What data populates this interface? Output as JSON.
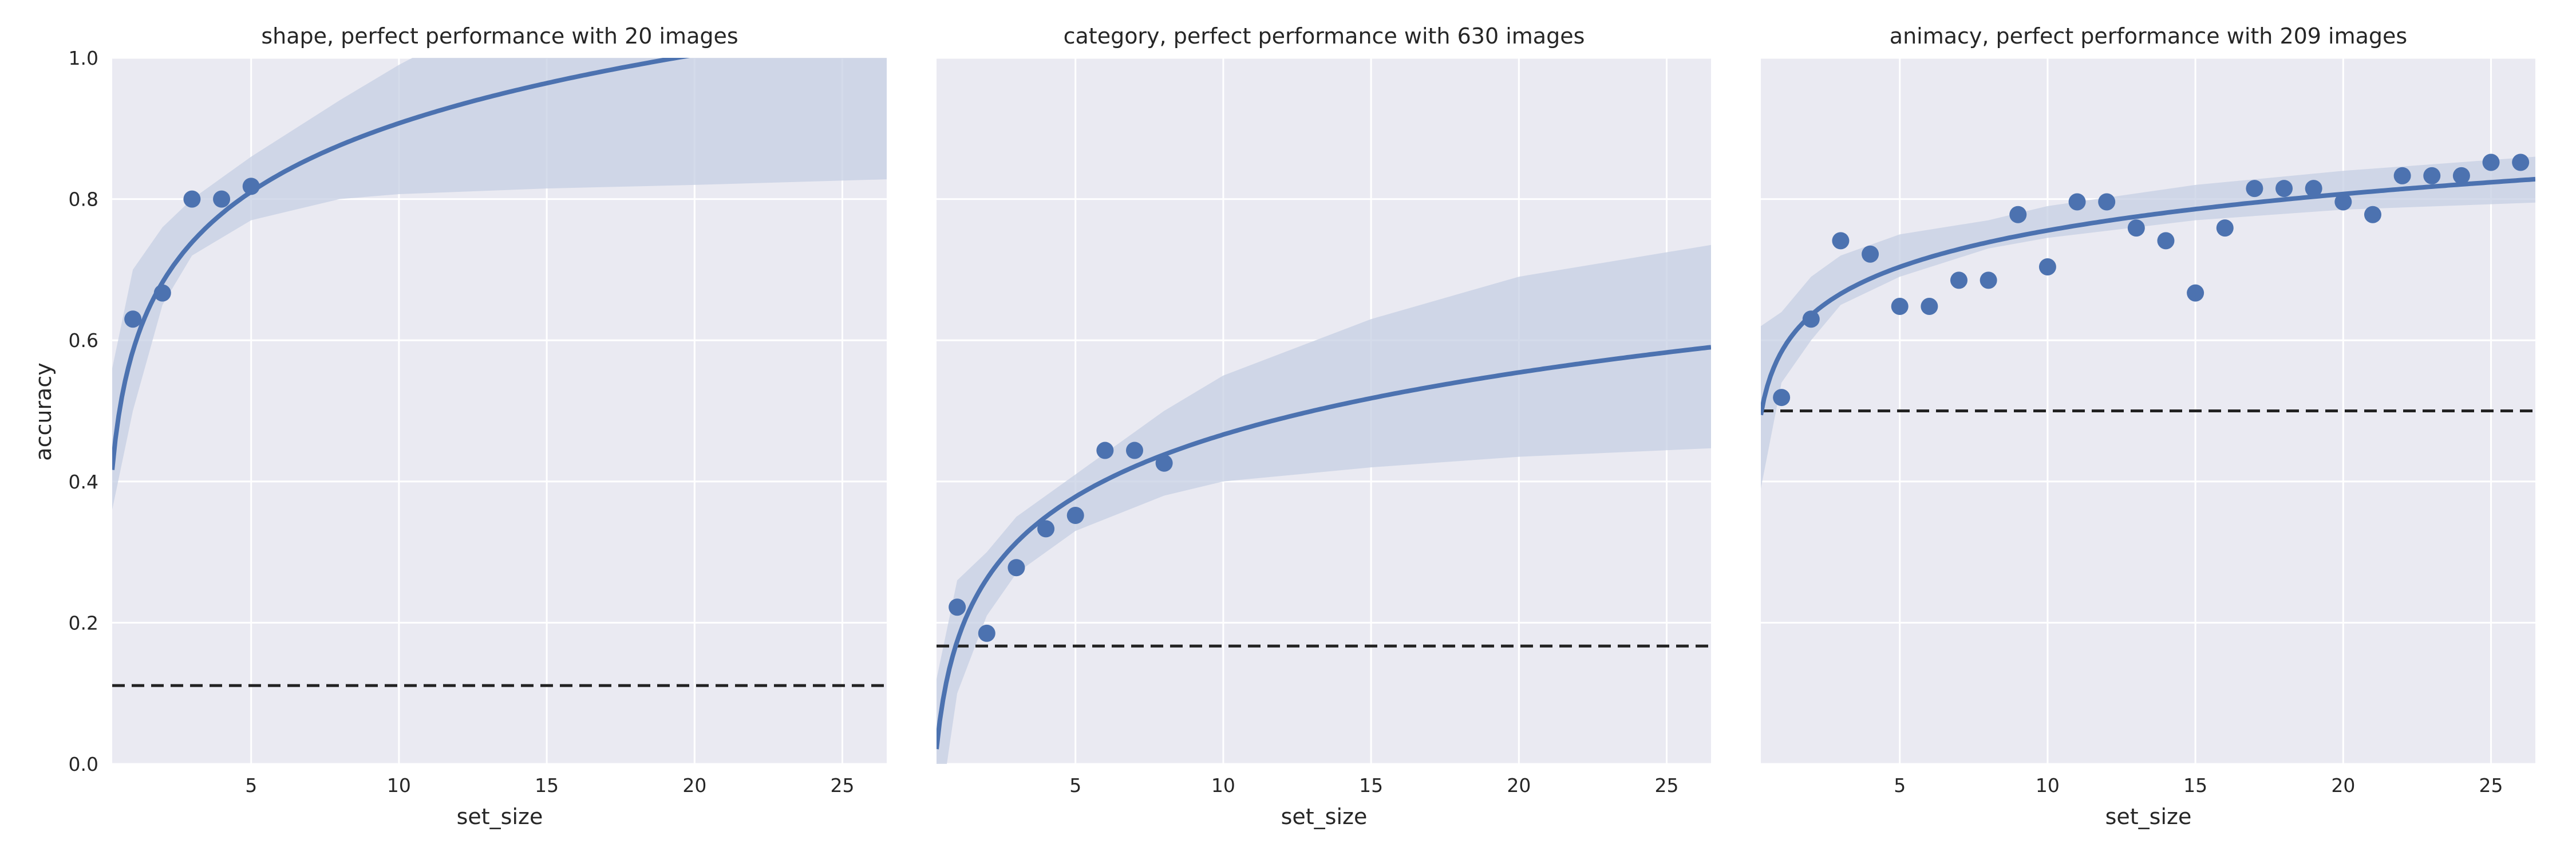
{
  "chart_data": [
    {
      "type": "scatter",
      "title": "shape, perfect performance with 20 images",
      "xlabel": "set_size",
      "ylabel": "accuracy",
      "xlim": [
        0.3,
        26.5
      ],
      "ylim": [
        0.0,
        1.0
      ],
      "xticks": [
        5,
        10,
        15,
        20,
        25
      ],
      "yticks": [
        0.0,
        0.2,
        0.4,
        0.6,
        0.8,
        1.0
      ],
      "chance_level": 0.111,
      "points": {
        "x": [
          1,
          2,
          3,
          4,
          5
        ],
        "y": [
          0.63,
          0.667,
          0.8,
          0.8,
          0.818
        ]
      },
      "fit": {
        "model": "y = a + b*ln(x)",
        "a": 0.585,
        "b": 0.14,
        "ci_upper": {
          "x": [
            0.3,
            1,
            2,
            3,
            5,
            8,
            10,
            15,
            20,
            26.5
          ],
          "y": [
            0.56,
            0.7,
            0.76,
            0.8,
            0.86,
            0.94,
            0.99,
            1.1,
            1.16,
            1.2
          ]
        },
        "ci_lower": {
          "x": [
            0.3,
            1,
            2,
            3,
            5,
            8,
            10,
            15,
            20,
            26.5
          ],
          "y": [
            0.36,
            0.5,
            0.65,
            0.72,
            0.77,
            0.8,
            0.807,
            0.815,
            0.82,
            0.828
          ]
        }
      },
      "colors": {
        "points": "#4c72b0",
        "line": "#4c72b0",
        "band": "#c5cfe3",
        "chance": "#222222",
        "background": "#eaeaf2",
        "grid": "#ffffff"
      }
    },
    {
      "type": "scatter",
      "title": "category, perfect performance with 630 images",
      "xlabel": "set_size",
      "ylabel": "",
      "xlim": [
        0.3,
        26.5
      ],
      "ylim": [
        0.0,
        1.0
      ],
      "xticks": [
        5,
        10,
        15,
        20,
        25
      ],
      "yticks": [
        0.0,
        0.2,
        0.4,
        0.6,
        0.8,
        1.0
      ],
      "chance_level": 0.167,
      "points": {
        "x": [
          1,
          2,
          3,
          4,
          5,
          6,
          7,
          8
        ],
        "y": [
          0.222,
          0.185,
          0.278,
          0.333,
          0.352,
          0.444,
          0.444,
          0.426
        ]
      },
      "fit": {
        "model": "y = a + b*ln(x)",
        "a": 0.174,
        "b": 0.127,
        "ci_upper": {
          "x": [
            0.3,
            1,
            2,
            3,
            5,
            8,
            10,
            15,
            20,
            26.5
          ],
          "y": [
            0.12,
            0.26,
            0.3,
            0.35,
            0.41,
            0.5,
            0.55,
            0.63,
            0.69,
            0.735
          ]
        },
        "ci_lower": {
          "x": [
            0.3,
            1,
            2,
            3,
            5,
            8,
            10,
            15,
            20,
            26.5
          ],
          "y": [
            -0.1,
            0.1,
            0.21,
            0.27,
            0.33,
            0.38,
            0.4,
            0.42,
            0.435,
            0.447
          ]
        }
      },
      "colors": {
        "points": "#4c72b0",
        "line": "#4c72b0",
        "band": "#c5cfe3",
        "chance": "#222222",
        "background": "#eaeaf2",
        "grid": "#ffffff"
      }
    },
    {
      "type": "scatter",
      "title": "animacy, perfect performance with 209 images",
      "xlabel": "set_size",
      "ylabel": "",
      "xlim": [
        0.3,
        26.5
      ],
      "ylim": [
        0.0,
        1.0
      ],
      "xticks": [
        5,
        10,
        15,
        20,
        25
      ],
      "yticks": [
        0.0,
        0.2,
        0.4,
        0.6,
        0.8,
        1.0
      ],
      "chance_level": 0.5,
      "points": {
        "x": [
          1,
          2,
          3,
          4,
          5,
          6,
          7,
          8,
          9,
          10,
          11,
          12,
          13,
          14,
          15,
          16,
          17,
          18,
          19,
          20,
          21,
          22,
          23,
          24,
          25,
          26
        ],
        "y": [
          0.519,
          0.63,
          0.741,
          0.722,
          0.648,
          0.648,
          0.685,
          0.685,
          0.778,
          0.704,
          0.796,
          0.796,
          0.759,
          0.741,
          0.667,
          0.759,
          0.815,
          0.815,
          0.815,
          0.796,
          0.778,
          0.833,
          0.833,
          0.833,
          0.852,
          0.852
        ]
      },
      "fit": {
        "model": "y = a + b*ln(x)",
        "a": 0.584,
        "b": 0.0745,
        "ci_upper": {
          "x": [
            0.3,
            1,
            2,
            3,
            5,
            8,
            10,
            15,
            20,
            26.5
          ],
          "y": [
            0.62,
            0.64,
            0.69,
            0.72,
            0.75,
            0.77,
            0.79,
            0.82,
            0.84,
            0.86
          ]
        },
        "ci_lower": {
          "x": [
            0.3,
            1,
            2,
            3,
            5,
            8,
            10,
            15,
            20,
            26.5
          ],
          "y": [
            0.39,
            0.54,
            0.6,
            0.65,
            0.69,
            0.73,
            0.745,
            0.77,
            0.785,
            0.795
          ]
        }
      },
      "colors": {
        "points": "#4c72b0",
        "line": "#4c72b0",
        "band": "#c5cfe3",
        "chance": "#222222",
        "background": "#eaeaf2",
        "grid": "#ffffff"
      }
    }
  ]
}
